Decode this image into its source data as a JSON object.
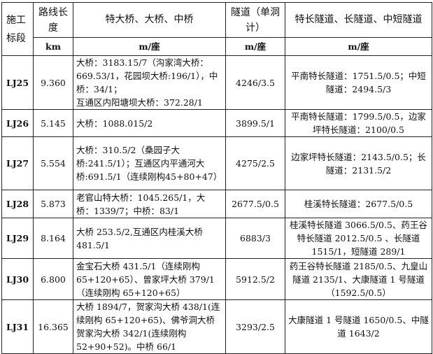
{
  "header": {
    "section": "施工标段",
    "length": "路线长度",
    "bridges": "特大桥、大桥、中桥",
    "tunnels": "隧道（单洞计）",
    "tunnel_types": "特长隧道、长隧道、中短隧道"
  },
  "units": {
    "length": "km",
    "bridges": "m/座",
    "tunnels": "m/座",
    "tunnel_types": "m/座"
  },
  "rows": [
    {
      "section": "LJ25",
      "length": "9.360",
      "bridges": "大桥：3183.15/7（沟家湾大桥：669.53/1，花园坝大桥:196/1），中桥：34/1；\n互通区内阳塘坝大桥：372.28/1",
      "tunnels": "4246/3.5",
      "tunnel_types": "平南特长隧道：1751.5/0.5；中短隧道：2494.5/3"
    },
    {
      "section": "LJ26",
      "length": "5.145",
      "bridges": "大桥：1088.015/2",
      "tunnels": "3899.5/1",
      "tunnel_types": "平南特长隧道：1799.5/0.5，边家坪特长隧道：2100/0.5"
    },
    {
      "section": "LJ27",
      "length": "5.554",
      "bridges": "大桥：310.5/2（桑园子大桥:241.5/1）；互通区内平通河大桥:691.5/1（连续刚构45+80+47）",
      "tunnels": "4275/2.5",
      "tunnel_types": "边家坪特长隧道：2143.5/0.5；长隧道：2131.5/2"
    },
    {
      "section": "LJ28",
      "length": "5.873",
      "bridges": "老官山特大桥：1045.265/1，大桥：1339/7；中桥：83/1",
      "tunnels": "2677.5/0.5",
      "tunnel_types": "桂溪特长隧道：2677.5/0.5"
    },
    {
      "section": "LJ29",
      "length": "8.164",
      "bridges": "大桥 253.5/2,互通区内桂溪大桥 481.5/1",
      "tunnels": "6883/3",
      "tunnel_types": "桂溪特长隧道 3066.5/0.5、药王谷特长隧道 2012.5/0.5 、长隧道 1515/1，短隧道 289/1"
    },
    {
      "section": "LJ30",
      "length": "6.800",
      "bridges": "金宝石大桥 431.5/1（连续刚构65+120+65）、曾家坪大桥 379/1（连续刚构 65+120+65）",
      "tunnels": "5912.5/2",
      "tunnel_types": "药王谷特长隧道 2185/0.5、九皇山隧道 2135/1、大康隧道 1 号隧道（1592.5/0.5）"
    },
    {
      "section": "LJ31",
      "length": "16.365",
      "bridges": "大桥 1894/7，贺家沟大桥 438/1(连续刚构 65+120+65)、佛爷洞大桥贺家沟大桥 342/1(连续刚构 52+90+52)。中桥 66/1",
      "tunnels": "3293/2.5",
      "tunnel_types": "大康隧道 1 号隧道 1650/0.5、中隧道 1643/2"
    }
  ]
}
